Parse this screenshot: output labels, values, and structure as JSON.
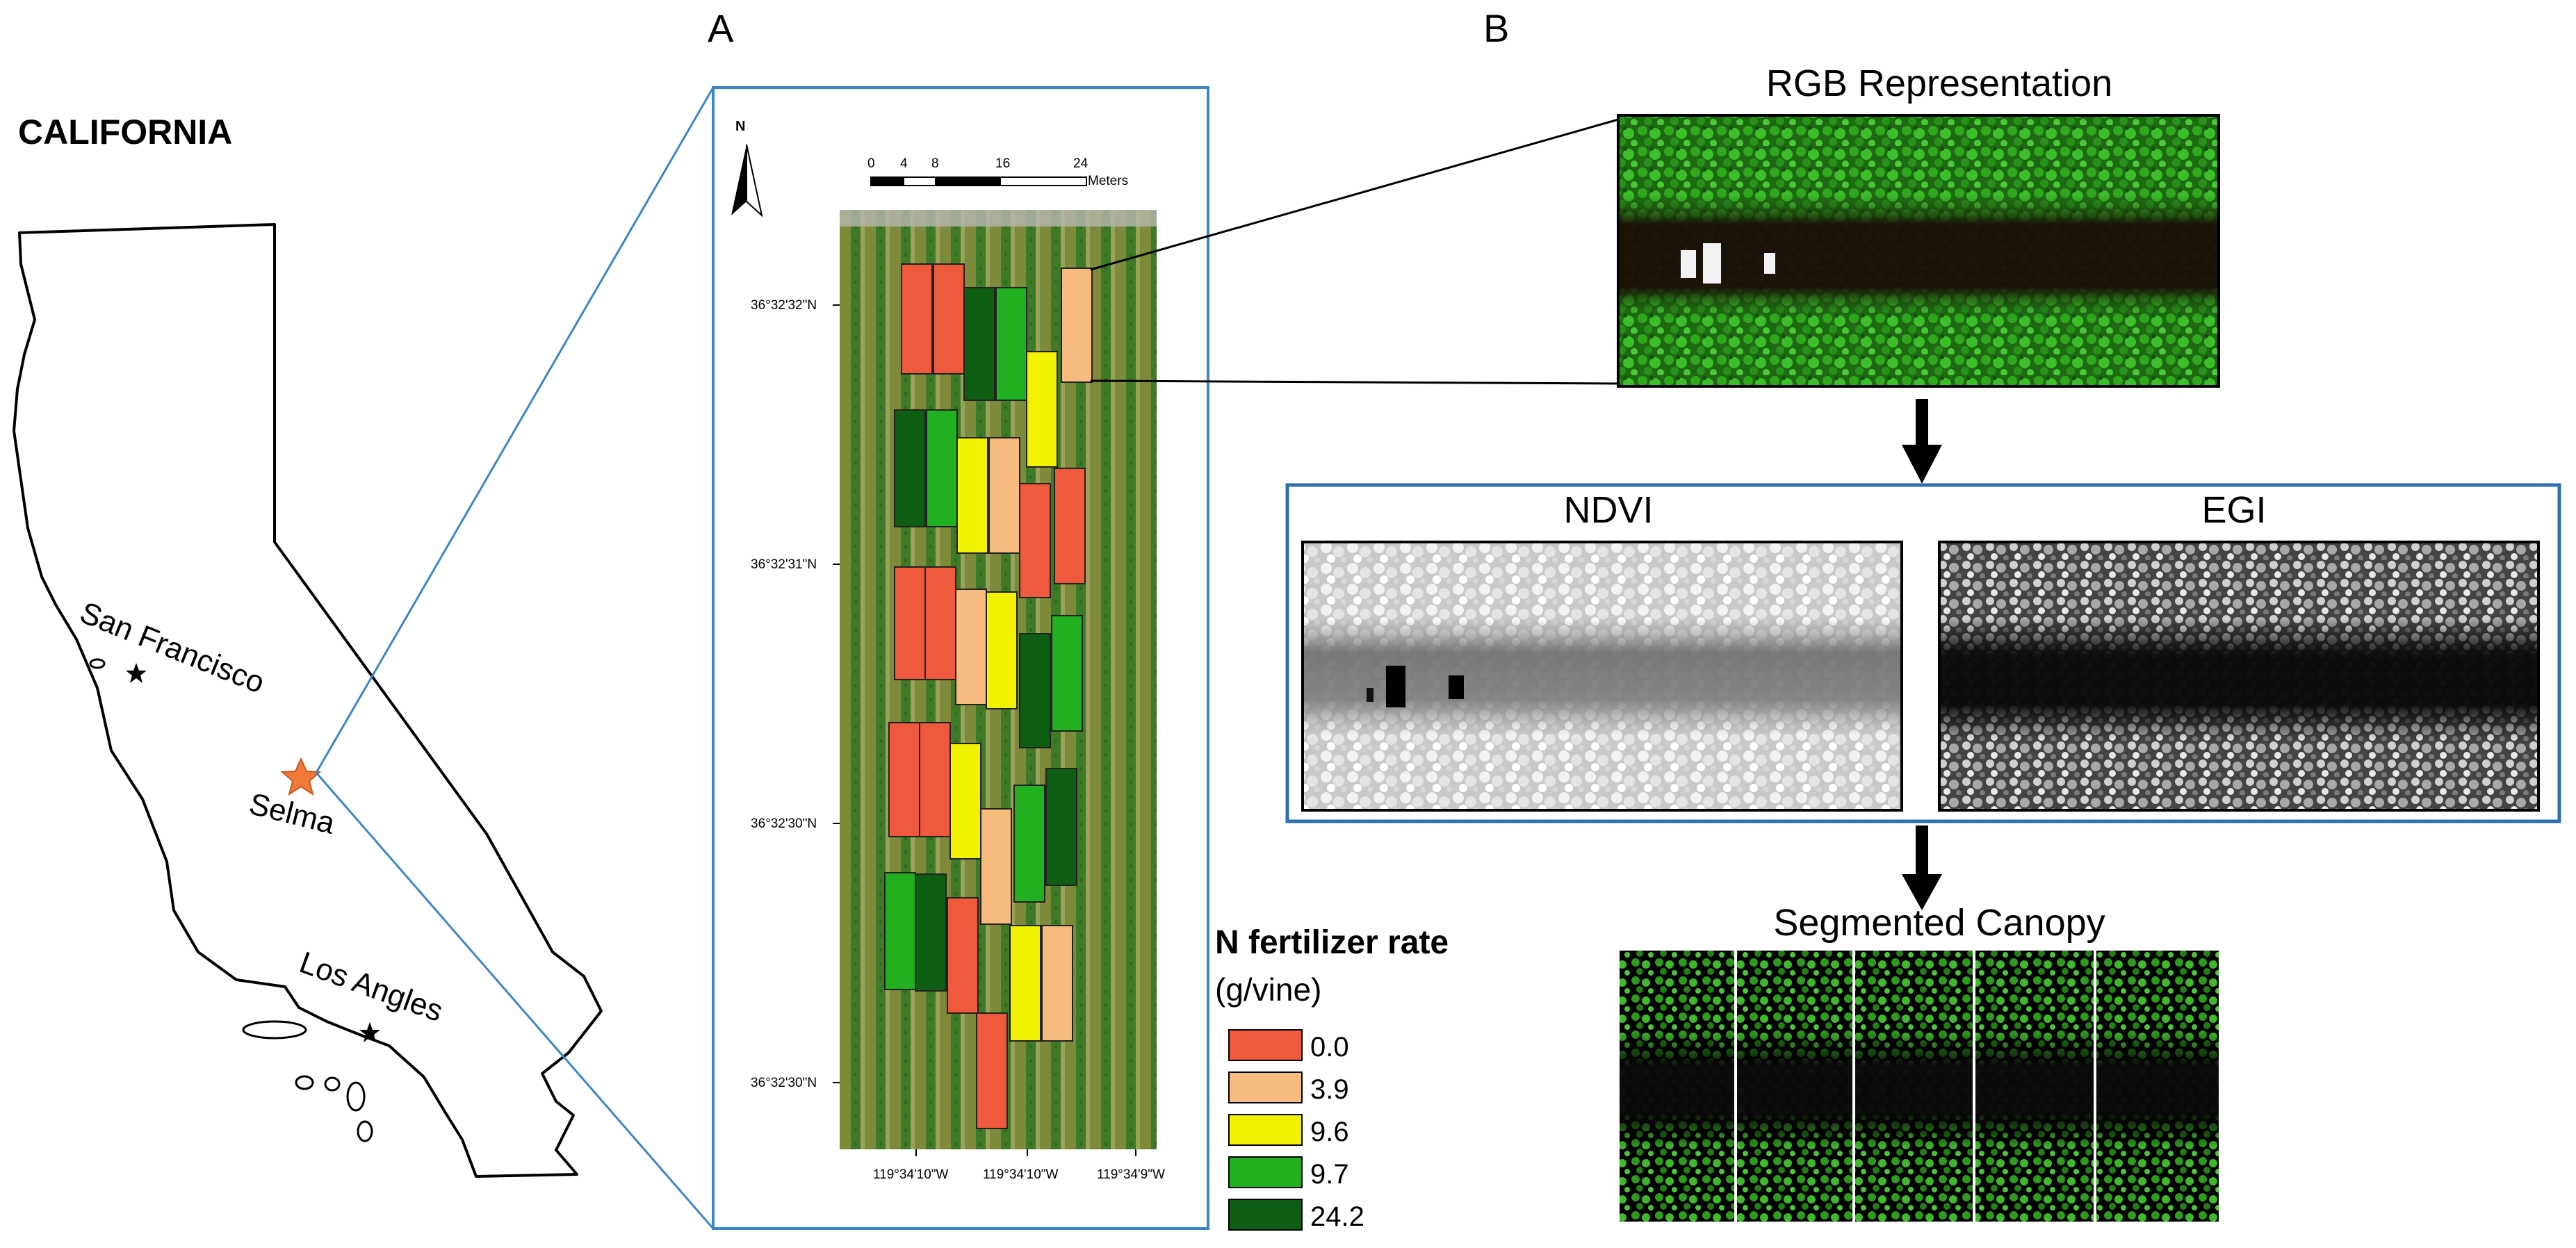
{
  "panel_labels": {
    "a": "A",
    "b": "B"
  },
  "california": {
    "title": "CALIFORNIA",
    "places": [
      "San Francisco",
      "Selma",
      "Los Angles"
    ]
  },
  "map_a": {
    "north": "N",
    "scalebar": {
      "ticks": [
        "0",
        "4",
        "8",
        "16",
        "24"
      ],
      "unit": "Meters"
    },
    "lat_labels": [
      "36°32'32\"N",
      "36°32'31\"N",
      "36°32'30\"N",
      "36°32'30\"N"
    ],
    "lon_labels": [
      "119°34'10\"W",
      "119°34'10\"W",
      "119°34'9\"W"
    ]
  },
  "legend": {
    "title": "N fertilizer rate",
    "unit": "(g/vine)",
    "items": [
      {
        "label": "0.0",
        "color": "#f05a3c"
      },
      {
        "label": "3.9",
        "color": "#f7bb7e"
      },
      {
        "label": "9.6",
        "color": "#f2f200"
      },
      {
        "label": "9.7",
        "color": "#20b020"
      },
      {
        "label": "24.2",
        "color": "#0d5e12"
      }
    ]
  },
  "panel_b": {
    "rgb_title": "RGB Representation",
    "ndvi_title": "NDVI",
    "egi_title": "EGI",
    "segmented_title": "Segmented Canopy"
  }
}
